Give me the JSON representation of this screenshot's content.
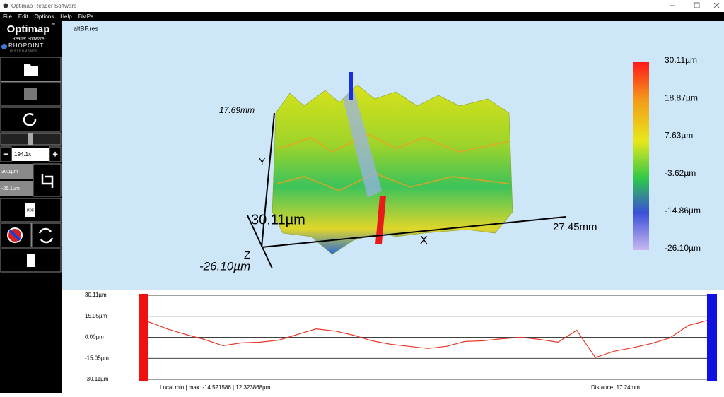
{
  "window": {
    "title": "Optimap Reader Software"
  },
  "menu": [
    "File",
    "Edit",
    "Options",
    "Help",
    "BMPs"
  ],
  "sidebar": {
    "logo": "Optimap",
    "logo_mark": "™",
    "subtitle": "Reader Software",
    "brand": "RHOPOINT",
    "brand_sub": "INSTRUMENTS",
    "zoom": "194.1x",
    "zoom_minus": "−",
    "zoom_plus": "+",
    "range_max": "30.1µm",
    "range_min": "-26.1µm",
    "pdf": "PDF"
  },
  "view3d": {
    "filename": "altBF.res",
    "y_extent": "17.69mm",
    "y_axis": "Y",
    "z_max": "30.11µm",
    "z_axis": "Z",
    "z_min": "-26.10µm",
    "x_axis": "X",
    "x_extent": "27.45mm",
    "colorbar": [
      "30.11µm",
      "18.87µm",
      "7.63µm",
      "-3.62µm",
      "-14.86µm",
      "-26.10µm"
    ]
  },
  "profile": {
    "ylim": [
      -30.11,
      30.11
    ],
    "yticks": [
      {
        "value": 30.11,
        "label": "30.11µm"
      },
      {
        "value": 15.05,
        "label": "15.05µm"
      },
      {
        "value": 0,
        "label": "0.00µm"
      },
      {
        "value": -15.05,
        "label": "-15.05µm"
      },
      {
        "value": -30.11,
        "label": "-30.11µm"
      }
    ],
    "values": [
      11.1,
      6,
      2,
      -1.5,
      -6,
      -4,
      -3.5,
      -2,
      2,
      6,
      4.5,
      1.5,
      -2.5,
      -5,
      -6.5,
      -8,
      -6.5,
      -3,
      -2.5,
      -1,
      0,
      -1.5,
      -3.5,
      5,
      -14.5,
      -10,
      -7.5,
      -4.5,
      -0.5,
      8.5,
      12
    ],
    "color": "#e8392a",
    "local_minmax": "Local min | max: -14.521586 | 12.323868µm",
    "distance": "Distance: 17.24mm"
  }
}
